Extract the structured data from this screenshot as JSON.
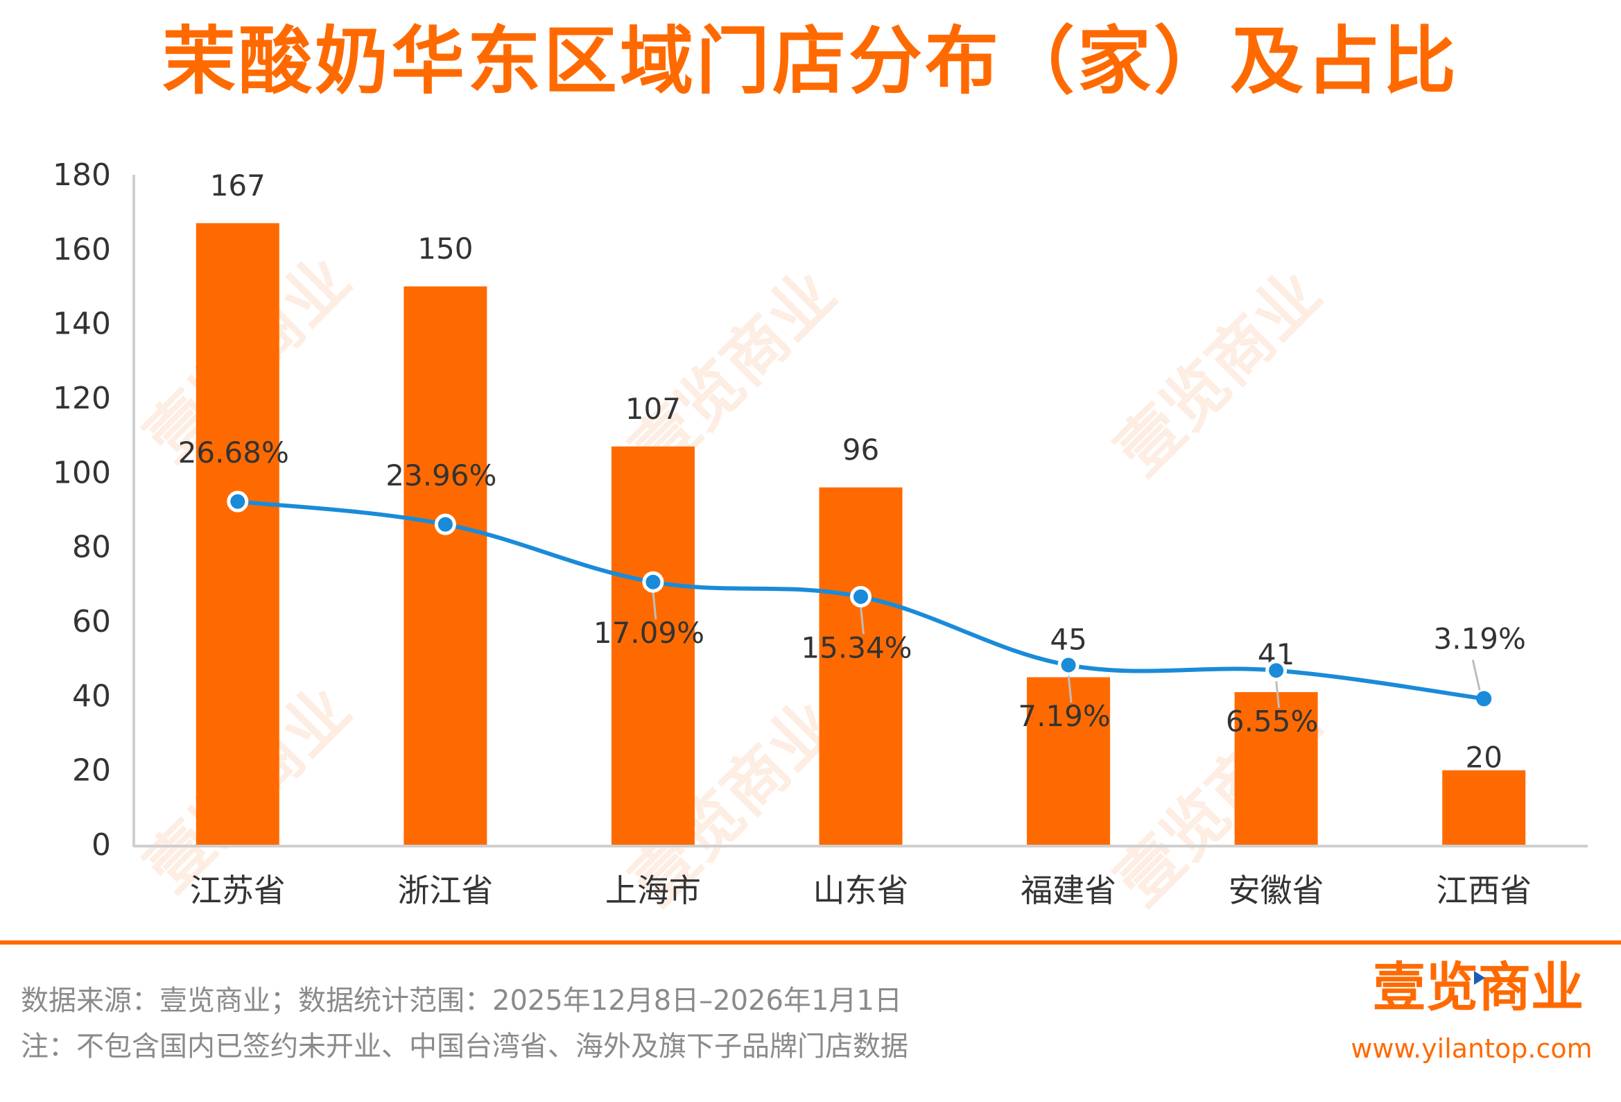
{
  "title": "茉酸奶华东区域门店分布（家）及占比",
  "chart_data": {
    "type": "bar",
    "categories": [
      "江苏省",
      "浙江省",
      "上海市",
      "山东省",
      "福建省",
      "安徽省",
      "江西省"
    ],
    "series": [
      {
        "values": [
          167,
          150,
          107,
          96,
          45,
          41,
          20
        ],
        "type": "bar",
        "color": "#FF6A00"
      },
      {
        "values": [
          "26.68%",
          "23.96%",
          "17.09%",
          "15.34%",
          "7.19%",
          "6.55%",
          "3.19%"
        ],
        "type": "line",
        "color": "#1A8BD8"
      }
    ],
    "y_ticks": [
      "0",
      "20",
      "40",
      "60",
      "80",
      "100",
      "120",
      "140",
      "160",
      "180"
    ],
    "ylim": [
      0,
      180
    ],
    "grid": false,
    "legend": "none"
  },
  "footer": {
    "source": "数据来源：壹览商业；数据统计范围：2025年12月8日–2026年1月1日",
    "note": "注：不包含国内已签约未开业、中国台湾省、海外及旗下子品牌门店数据"
  },
  "logo": {
    "text": "壹览商业",
    "url": "www.yilantop.com"
  },
  "watermark": "壹览商业"
}
